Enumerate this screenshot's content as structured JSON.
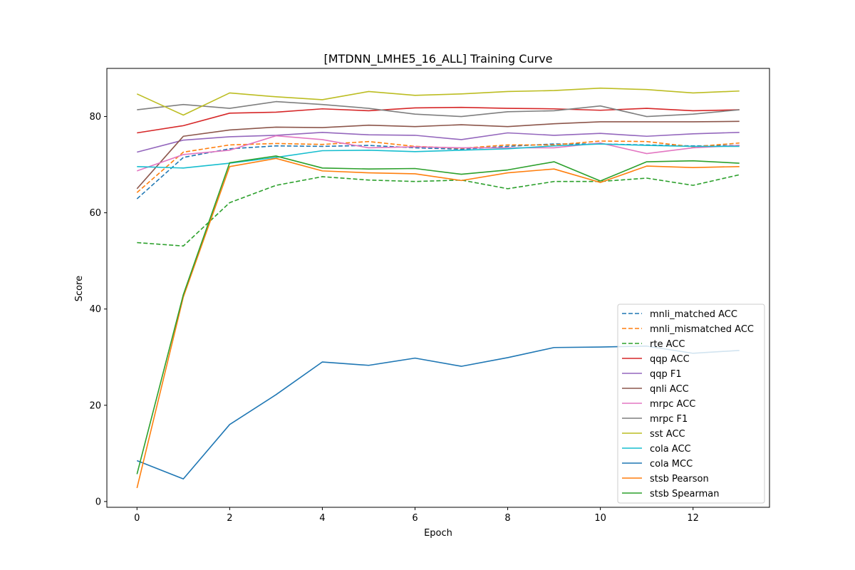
{
  "chart_data": {
    "type": "line",
    "title": "[MTDNN_LMHE5_16_ALL] Training Curve",
    "xlabel": "Epoch",
    "ylabel": "Score",
    "xlim": [
      -0.65,
      13.65
    ],
    "ylim": [
      -1.2,
      90.0
    ],
    "x_ticks": [
      0,
      2,
      4,
      6,
      8,
      10,
      12
    ],
    "y_ticks": [
      0,
      20,
      40,
      60,
      80
    ],
    "grid": false,
    "legend_position": "lower right",
    "x": [
      0,
      1,
      2,
      3,
      4,
      5,
      6,
      7,
      8,
      9,
      10,
      11,
      12,
      13
    ],
    "series": [
      {
        "name": "mnli_matched ACC",
        "color": "#1f77b4",
        "dashed": true,
        "values": [
          62.9,
          71.5,
          73.3,
          73.9,
          73.8,
          74.0,
          73.5,
          73.2,
          73.8,
          74.3,
          74.3,
          74.1,
          73.9,
          74.0
        ]
      },
      {
        "name": "mnli_mismatched ACC",
        "color": "#ff7f0e",
        "dashed": true,
        "values": [
          64.2,
          72.6,
          74.1,
          74.4,
          74.2,
          74.8,
          73.8,
          73.4,
          74.1,
          74.1,
          74.9,
          74.8,
          73.7,
          74.5
        ]
      },
      {
        "name": "rte ACC",
        "color": "#2ca02c",
        "dashed": true,
        "values": [
          53.8,
          53.1,
          62.1,
          65.7,
          67.5,
          66.8,
          66.5,
          66.8,
          65.0,
          66.5,
          66.5,
          67.2,
          65.7,
          67.9
        ]
      },
      {
        "name": "qqp ACC",
        "color": "#d62728",
        "dashed": false,
        "values": [
          76.6,
          78.1,
          80.7,
          80.9,
          81.6,
          81.2,
          81.8,
          81.9,
          81.7,
          81.6,
          81.3,
          81.7,
          81.2,
          81.4
        ]
      },
      {
        "name": "qqp F1",
        "color": "#9467bd",
        "dashed": false,
        "values": [
          72.6,
          75.1,
          75.8,
          76.1,
          76.7,
          76.2,
          76.1,
          75.2,
          76.6,
          76.1,
          76.5,
          75.9,
          76.4,
          76.7
        ]
      },
      {
        "name": "qnli ACC",
        "color": "#8c564b",
        "dashed": false,
        "values": [
          65.0,
          75.9,
          77.2,
          77.8,
          77.7,
          78.2,
          77.9,
          78.3,
          77.9,
          78.5,
          78.9,
          78.9,
          78.9,
          79.0
        ]
      },
      {
        "name": "mrpc ACC",
        "color": "#e377c2",
        "dashed": false,
        "values": [
          68.7,
          72.1,
          73.0,
          76.0,
          75.2,
          73.5,
          73.7,
          73.5,
          73.5,
          73.5,
          74.5,
          72.3,
          73.5,
          74.0
        ]
      },
      {
        "name": "mrpc F1",
        "color": "#7f7f7f",
        "dashed": false,
        "values": [
          81.4,
          82.5,
          81.7,
          83.1,
          82.5,
          81.7,
          80.5,
          80.0,
          81.0,
          81.2,
          82.2,
          80.0,
          80.5,
          81.4
        ]
      },
      {
        "name": "sst ACC",
        "color": "#bcbd22",
        "dashed": false,
        "values": [
          84.7,
          80.3,
          84.9,
          84.1,
          83.5,
          85.2,
          84.4,
          84.7,
          85.2,
          85.4,
          85.9,
          85.6,
          84.9,
          85.3
        ]
      },
      {
        "name": "cola ACC",
        "color": "#17becf",
        "dashed": false,
        "values": [
          69.6,
          69.3,
          70.3,
          71.5,
          72.9,
          73.0,
          72.7,
          73.0,
          73.3,
          73.9,
          74.3,
          74.0,
          73.8,
          73.8
        ]
      },
      {
        "name": "cola MCC",
        "color": "#1f77b4",
        "dashed": false,
        "values": [
          8.5,
          4.7,
          16.0,
          22.2,
          29.0,
          28.3,
          29.8,
          28.1,
          29.9,
          32.0,
          32.1,
          32.3,
          30.8,
          31.4
        ]
      },
      {
        "name": "stsb Pearson",
        "color": "#ff7f0e",
        "dashed": false,
        "values": [
          2.8,
          42.5,
          69.6,
          71.3,
          68.7,
          68.3,
          68.1,
          66.7,
          68.3,
          69.1,
          66.3,
          69.7,
          69.4,
          69.6
        ]
      },
      {
        "name": "stsb Spearman",
        "color": "#2ca02c",
        "dashed": false,
        "values": [
          5.7,
          43.0,
          70.4,
          71.8,
          69.3,
          69.1,
          69.2,
          68.0,
          68.9,
          70.6,
          66.6,
          70.6,
          70.8,
          70.3
        ]
      }
    ]
  }
}
